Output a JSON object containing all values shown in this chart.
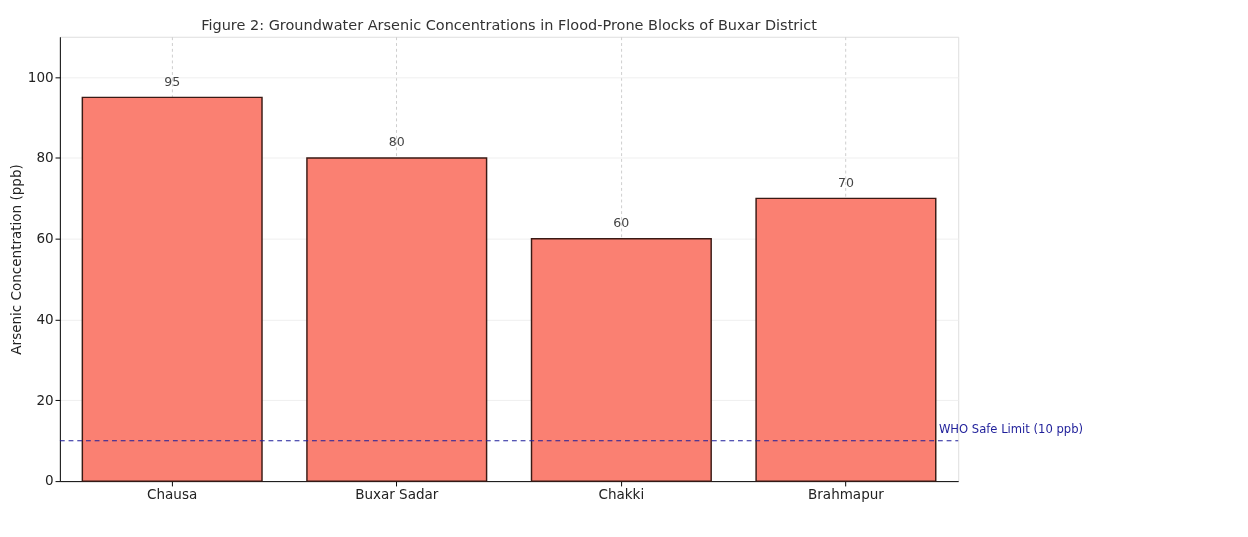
{
  "chart_data": {
    "type": "bar",
    "title": "Figure 2: Groundwater Arsenic Concentrations in Flood-Prone Blocks of Buxar District",
    "ylabel": "Arsenic Concentration (ppb)",
    "categories": [
      "Chausa",
      "Buxar Sadar",
      "Chakki",
      "Brahmapur"
    ],
    "values": [
      95,
      80,
      60,
      70
    ],
    "color": "#fa8072",
    "ylim": [
      0,
      110
    ],
    "yticks": [
      0,
      20,
      40,
      60,
      80,
      100
    ],
    "grid": true,
    "data_labels": true,
    "ref_lines": [
      {
        "axis": "y",
        "value": 10,
        "label": "WHO Safe Limit (10 ppb)",
        "color": "#1f1f9a",
        "line_style": "dashed"
      }
    ]
  }
}
